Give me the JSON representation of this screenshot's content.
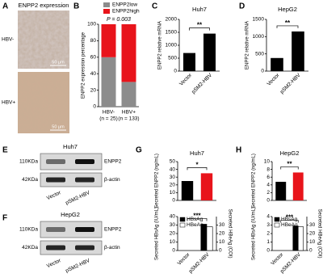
{
  "image_panel": {
    "panel": "A",
    "title": "ENPP2 expression",
    "rows": [
      {
        "label": "HBV-",
        "scale": "50 μm"
      },
      {
        "label": "HBV+",
        "scale": "50 μm"
      }
    ]
  },
  "blots": [
    {
      "panel": "E",
      "cell_line": "Huh7",
      "rows": [
        {
          "size": "110KDa",
          "protein": "ENPP2"
        },
        {
          "size": "42KDa",
          "protein": "β-actin"
        }
      ],
      "lanes": [
        "Vector",
        "pSM2-HBV"
      ]
    },
    {
      "panel": "F",
      "cell_line": "HepG2",
      "rows": [
        {
          "size": "110KDa",
          "protein": "ENPP2"
        },
        {
          "size": "42KDa",
          "protein": "β-actin"
        }
      ],
      "lanes": [
        "Vector",
        "pSM2-HBV"
      ]
    }
  ],
  "chart_data": [
    {
      "type": "bar",
      "panel": "B",
      "stacked": true,
      "ylabel": "ENPP2 expression percentage",
      "annotation": "P = 0.003",
      "categories": [
        "HBV-",
        "HBV+"
      ],
      "category_notes": [
        "(n = 25)",
        "(n = 133)"
      ],
      "series": [
        {
          "name": "ENPP2low",
          "color": "#8c8c8c",
          "values": [
            60,
            30
          ]
        },
        {
          "name": "ENPP2high",
          "color": "#e8141b",
          "values": [
            40,
            70
          ]
        }
      ],
      "ylim": [
        0,
        100
      ],
      "yticks": [
        0,
        20,
        40,
        60,
        80,
        100
      ]
    },
    {
      "type": "bar",
      "panel": "C",
      "title": "Huh7",
      "ylabel": "ENPP2 relative mRNA",
      "categories": [
        "Vector",
        "pSM2-HBV"
      ],
      "values": [
        700,
        1450
      ],
      "colors": [
        "#000000",
        "#000000"
      ],
      "annotation": "**",
      "ylim": [
        0,
        2000
      ],
      "yticks": [
        0,
        500,
        1000,
        1500,
        2000
      ]
    },
    {
      "type": "bar",
      "panel": "D",
      "title": "HepG2",
      "ylabel": "ENPP2 relative mRNA",
      "categories": [
        "Vector",
        "pSM2-HBV"
      ],
      "values": [
        380,
        1150
      ],
      "colors": [
        "#000000",
        "#000000"
      ],
      "annotation": "**",
      "ylim": [
        0,
        1500
      ],
      "yticks": [
        0,
        500,
        1000,
        1500
      ]
    },
    {
      "type": "bar",
      "panel": "G",
      "title": "Huh7",
      "ylabel": "Secreted ENPP2 (ng/mL)",
      "values": [
        25,
        35
      ],
      "colors": [
        "#000000",
        "#e8141b"
      ],
      "annotation": "*",
      "ylim": [
        0,
        50
      ],
      "yticks": [
        0,
        10,
        20,
        30,
        40,
        50
      ]
    },
    {
      "type": "bar",
      "ylabel": "Secreted HBsAg (IU/mL)",
      "y2label": "Secreted HBeAg (COI)",
      "categories": [
        "Vector",
        "pSM2-HBV"
      ],
      "series": [
        {
          "name": "HBsAg",
          "color": "#000000",
          "values": [
            0,
            31
          ]
        },
        {
          "name": "HBeAg",
          "color": "#ffffff",
          "values": [
            0,
            28
          ],
          "axis": "y2"
        }
      ],
      "annotation": "***",
      "ylim": [
        0,
        40
      ],
      "yticks": [
        0,
        10,
        20,
        30,
        40
      ],
      "y2lim": [
        0,
        40
      ],
      "y2ticks": [
        0,
        10,
        20,
        30
      ]
    },
    {
      "type": "bar",
      "panel": "H",
      "title": "HepG2",
      "ylabel": "Secreted ENPP2 (ng/mL)",
      "values": [
        4.8,
        7.2
      ],
      "colors": [
        "#000000",
        "#e8141b"
      ],
      "annotation": "**",
      "ylim": [
        0,
        10
      ],
      "yticks": [
        0,
        2,
        4,
        6,
        8,
        10
      ]
    },
    {
      "type": "bar",
      "ylabel": "Secreted HBsAg (IU/mL)",
      "y2label": "Secreted HBeAg (COI)",
      "categories": [
        "Vector",
        "pSM2-HBV"
      ],
      "series": [
        {
          "name": "HBsAg",
          "color": "#000000",
          "values": [
            0,
            2.9
          ]
        },
        {
          "name": "HBeAg",
          "color": "#ffffff",
          "values": [
            0,
            28
          ],
          "axis": "y2"
        }
      ],
      "annotation": "***",
      "ylim": [
        0,
        4
      ],
      "yticks": [
        0,
        1,
        2,
        3,
        4
      ],
      "y2lim": [
        0,
        40
      ],
      "y2ticks": [
        0,
        10,
        20,
        30
      ]
    }
  ]
}
